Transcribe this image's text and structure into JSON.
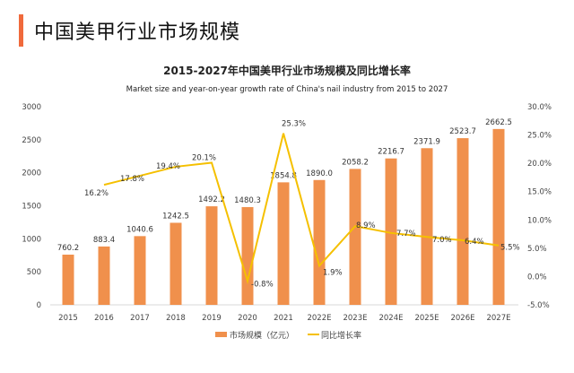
{
  "header": {
    "title": "中国美甲行业市场规模"
  },
  "chart_data": {
    "type": "bar+line",
    "title": "2015-2027年中国美甲行业市场规模及同比增长率",
    "subtitle": "Market size and year-on-year growth rate of China's nail industry from 2015 to 2027",
    "categories": [
      "2015",
      "2016",
      "2017",
      "2018",
      "2019",
      "2020",
      "2021",
      "2022E",
      "2023E",
      "2024E",
      "2025E",
      "2026E",
      "2027E"
    ],
    "series": [
      {
        "name": "市场规模（亿元）",
        "type": "bar",
        "axis": "left",
        "color": "#f0904c",
        "values": [
          760.2,
          883.4,
          1040.6,
          1242.5,
          1492.2,
          1480.3,
          1854.8,
          1890.0,
          2058.2,
          2216.7,
          2371.9,
          2523.7,
          2662.5
        ],
        "labels": [
          "760.2",
          "883.4",
          "1040.6",
          "1242.5",
          "1492.2",
          "1480.3",
          "1854.8",
          "1890.0",
          "2058.2",
          "2216.7",
          "2371.9",
          "2523.7",
          "2662.5"
        ]
      },
      {
        "name": "同比增长率",
        "type": "line",
        "axis": "right",
        "color": "#f5c000",
        "values": [
          null,
          16.2,
          17.8,
          19.4,
          20.1,
          -0.8,
          25.3,
          1.9,
          8.9,
          7.7,
          7.0,
          6.4,
          5.5
        ],
        "labels": [
          "",
          "16.2%",
          "17.8%",
          "19.4%",
          "20.1%",
          "-0.8%",
          "25.3%",
          "1.9%",
          "8.9%",
          "7.7%",
          "7.0%",
          "6.4%",
          "5.5%"
        ]
      }
    ],
    "left_axis": {
      "range": [
        0,
        3000
      ],
      "ticks": [
        "0",
        "500",
        "1000",
        "1500",
        "2000",
        "2500",
        "3000"
      ]
    },
    "right_axis": {
      "range": [
        -5,
        30
      ],
      "ticks": [
        "-5.0%",
        "0.0%",
        "5.0%",
        "10.0%",
        "15.0%",
        "20.0%",
        "25.0%",
        "30.0%"
      ]
    },
    "grid": false,
    "legend": "bottom"
  }
}
